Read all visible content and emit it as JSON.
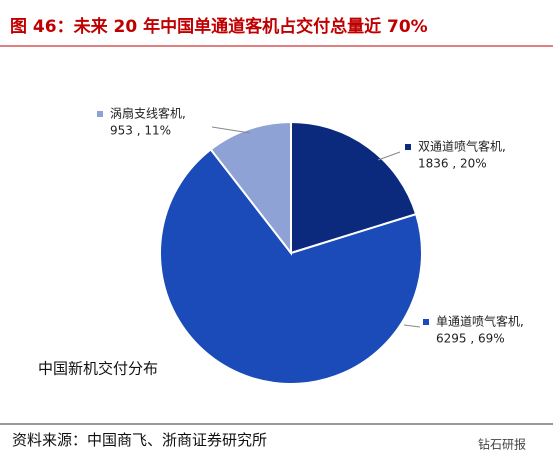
{
  "chart_data": {
    "type": "pie",
    "title": "图 46：未来 20 年中国单通道客机占交付总量近 70%",
    "categories": [
      "双通道喷气客机,",
      "单通道喷气客机,",
      "涡扇支线客机,"
    ],
    "values": [
      1836,
      6295,
      953
    ],
    "value_labels": [
      "1836 , 20%",
      "6295 , 69%",
      "953 , 11%"
    ],
    "colors": [
      "#0b2a7e",
      "#1a4bb8",
      "#8fa2d6"
    ],
    "annotation": "中国新机交付分布",
    "source": "资料来源：中国商飞、浙商证券研究所",
    "watermark": "钻石研报"
  }
}
